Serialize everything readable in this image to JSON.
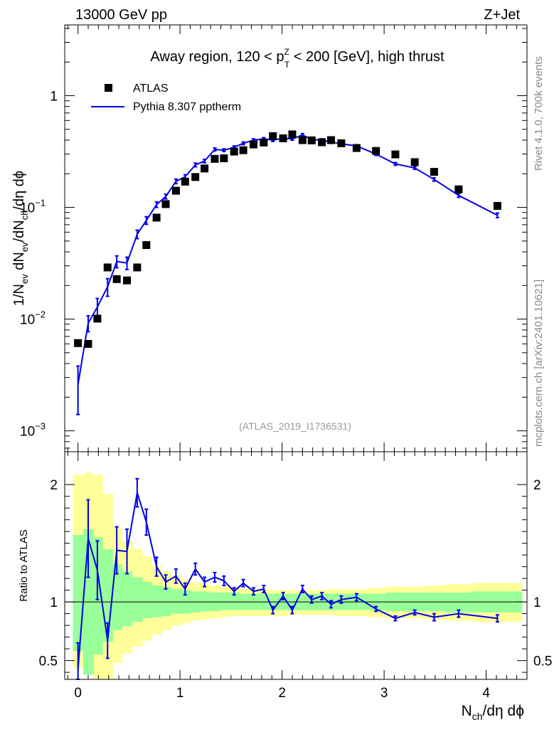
{
  "header": {
    "left": "13000 GeV pp",
    "right": "Z+Jet"
  },
  "side_labels": {
    "top": "Rivet 4.1.0,  700k events",
    "bottom": "mcplots.cern.ch [arXiv:2401.10621]"
  },
  "colors": {
    "mc": "#0000e6",
    "data": "#000000",
    "band_yellow": "#ffff99",
    "band_green": "#99ff99"
  },
  "chart_data": [
    {
      "type": "scatter",
      "role": "main",
      "title_parts": {
        "pre": "Away region, 120 < p",
        "sup": "Z",
        "sub": "T",
        "post": " < 200 [GeV], high thrust"
      },
      "ylabel_parts": [
        "1/N",
        "ev",
        " dN",
        "ev",
        "/dN",
        "ch",
        "/dη dϕ"
      ],
      "yscale": "log",
      "ylim": [
        0.00065,
        4.3
      ],
      "xlim": [
        -0.13,
        4.4
      ],
      "yticks": [
        {
          "v": 1,
          "base": "1",
          "exp": ""
        },
        {
          "v": 0.1,
          "base": "10",
          "exp": "−1"
        },
        {
          "v": 0.01,
          "base": "10",
          "exp": "−2"
        },
        {
          "v": 0.001,
          "base": "10",
          "exp": "−3"
        }
      ],
      "reference": "(ATLAS_2019_I1736531)",
      "legend": [
        {
          "name": "ATLAS",
          "marker": "square"
        },
        {
          "name": "Pythia 8.307 pptherm",
          "marker": "line"
        }
      ],
      "series": [
        {
          "name": "ATLAS",
          "x": [
            0.0,
            0.1,
            0.19,
            0.29,
            0.38,
            0.48,
            0.58,
            0.67,
            0.77,
            0.86,
            0.96,
            1.05,
            1.15,
            1.24,
            1.34,
            1.43,
            1.53,
            1.62,
            1.72,
            1.82,
            1.91,
            2.01,
            2.1,
            2.2,
            2.29,
            2.39,
            2.48,
            2.58,
            2.73,
            2.92,
            3.11,
            3.3,
            3.49,
            3.73,
            4.11
          ],
          "y": [
            0.0061,
            0.006,
            0.0101,
            0.029,
            0.0228,
            0.0222,
            0.029,
            0.046,
            0.081,
            0.107,
            0.141,
            0.17,
            0.187,
            0.223,
            0.272,
            0.275,
            0.316,
            0.325,
            0.366,
            0.381,
            0.434,
            0.415,
            0.45,
            0.4,
            0.398,
            0.383,
            0.4,
            0.375,
            0.34,
            0.32,
            0.298,
            0.254,
            0.208,
            0.145,
            0.103
          ]
        },
        {
          "name": "Pythia 8.307 pptherm",
          "x": [
            0.0,
            0.1,
            0.19,
            0.29,
            0.38,
            0.48,
            0.58,
            0.67,
            0.77,
            0.86,
            0.96,
            1.05,
            1.15,
            1.24,
            1.34,
            1.43,
            1.53,
            1.62,
            1.72,
            1.82,
            1.91,
            2.01,
            2.1,
            2.2,
            2.29,
            2.39,
            2.48,
            2.58,
            2.73,
            2.92,
            3.11,
            3.3,
            3.49,
            3.73,
            4.11
          ],
          "y": [
            0.0026,
            0.0092,
            0.0128,
            0.0195,
            0.0328,
            0.0318,
            0.0575,
            0.0765,
            0.106,
            0.125,
            0.171,
            0.188,
            0.24,
            0.26,
            0.33,
            0.325,
            0.345,
            0.375,
            0.4,
            0.41,
            0.4,
            0.415,
            0.41,
            0.445,
            0.405,
            0.4,
            0.385,
            0.37,
            0.355,
            0.3,
            0.245,
            0.225,
            0.178,
            0.128,
            0.085
          ],
          "err": [
            0.0012,
            0.0015,
            0.0025,
            0.0035,
            0.004,
            0.004,
            0.005,
            0.006,
            0.006,
            0.006,
            0.008,
            0.008,
            0.009,
            0.009,
            0.01,
            0.009,
            0.01,
            0.01,
            0.011,
            0.011,
            0.011,
            0.011,
            0.011,
            0.012,
            0.011,
            0.011,
            0.01,
            0.01,
            0.009,
            0.008,
            0.007,
            0.006,
            0.006,
            0.005,
            0.004
          ]
        }
      ]
    },
    {
      "type": "line",
      "role": "ratio",
      "ylabel": "Ratio to ATLAS",
      "xlabel_parts": [
        "N",
        "ch",
        "/dη dϕ"
      ],
      "ylim": [
        0.34,
        2.28
      ],
      "xlim": [
        -0.13,
        4.4
      ],
      "xticks": [
        {
          "v": 0,
          "label": "0"
        },
        {
          "v": 1,
          "label": "1"
        },
        {
          "v": 2,
          "label": "2"
        },
        {
          "v": 3,
          "label": "3"
        },
        {
          "v": 4,
          "label": "4"
        }
      ],
      "yticks": [
        {
          "v": 0.5,
          "label": "0.5"
        },
        {
          "v": 1,
          "label": "1"
        },
        {
          "v": 2,
          "label": "2"
        }
      ],
      "bands": {
        "edges": [
          -0.05,
          0.05,
          0.15,
          0.24,
          0.34,
          0.43,
          0.53,
          0.63,
          0.72,
          0.82,
          0.91,
          1.01,
          1.1,
          1.2,
          1.29,
          1.39,
          1.48,
          1.58,
          1.67,
          1.77,
          1.87,
          1.96,
          2.06,
          2.15,
          2.25,
          2.34,
          2.44,
          2.53,
          2.63,
          2.83,
          3.02,
          3.21,
          3.4,
          3.59,
          3.87,
          4.35
        ],
        "yellow_lo": [
          0.44,
          0.42,
          0.34,
          0.34,
          0.48,
          0.56,
          0.62,
          0.67,
          0.72,
          0.76,
          0.8,
          0.82,
          0.84,
          0.85,
          0.86,
          0.87,
          0.88,
          0.88,
          0.88,
          0.88,
          0.88,
          0.88,
          0.89,
          0.89,
          0.89,
          0.89,
          0.89,
          0.88,
          0.88,
          0.87,
          0.86,
          0.86,
          0.85,
          0.84,
          0.83
        ],
        "yellow_hi": [
          2.08,
          2.1,
          2.08,
          1.92,
          1.64,
          1.52,
          1.45,
          1.39,
          1.31,
          1.26,
          1.22,
          1.19,
          1.17,
          1.15,
          1.14,
          1.13,
          1.12,
          1.11,
          1.11,
          1.11,
          1.1,
          1.1,
          1.1,
          1.1,
          1.1,
          1.1,
          1.11,
          1.11,
          1.11,
          1.12,
          1.13,
          1.13,
          1.14,
          1.15,
          1.16
        ],
        "green_lo": [
          0.58,
          0.38,
          0.55,
          0.66,
          0.76,
          0.79,
          0.83,
          0.86,
          0.87,
          0.88,
          0.9,
          0.9,
          0.91,
          0.92,
          0.92,
          0.93,
          0.93,
          0.93,
          0.93,
          0.93,
          0.93,
          0.93,
          0.93,
          0.93,
          0.93,
          0.93,
          0.93,
          0.93,
          0.93,
          0.93,
          0.92,
          0.92,
          0.92,
          0.91,
          0.91
        ],
        "green_hi": [
          1.57,
          1.62,
          1.55,
          1.45,
          1.32,
          1.26,
          1.21,
          1.17,
          1.14,
          1.13,
          1.11,
          1.1,
          1.09,
          1.09,
          1.08,
          1.08,
          1.08,
          1.07,
          1.07,
          1.07,
          1.07,
          1.07,
          1.07,
          1.07,
          1.07,
          1.07,
          1.07,
          1.07,
          1.07,
          1.07,
          1.08,
          1.08,
          1.08,
          1.08,
          1.09
        ]
      },
      "series": [
        {
          "name": "Pythia 8.307 pptherm",
          "x": [
            0.0,
            0.1,
            0.19,
            0.29,
            0.38,
            0.48,
            0.58,
            0.67,
            0.77,
            0.86,
            0.96,
            1.05,
            1.15,
            1.24,
            1.34,
            1.43,
            1.53,
            1.62,
            1.72,
            1.82,
            1.91,
            2.01,
            2.1,
            2.2,
            2.29,
            2.39,
            2.48,
            2.58,
            2.73,
            2.92,
            3.11,
            3.3,
            3.49,
            3.73,
            4.11
          ],
          "y": [
            0.43,
            1.54,
            1.27,
            0.67,
            1.44,
            1.43,
            1.93,
            1.68,
            1.3,
            1.17,
            1.22,
            1.11,
            1.28,
            1.17,
            1.21,
            1.18,
            1.09,
            1.16,
            1.09,
            1.11,
            0.93,
            1.05,
            0.93,
            1.11,
            1.02,
            1.05,
            0.98,
            1.02,
            1.04,
            0.94,
            0.86,
            0.91,
            0.87,
            0.9,
            0.86
          ],
          "err": [
            0.22,
            0.33,
            0.25,
            0.15,
            0.2,
            0.19,
            0.12,
            0.11,
            0.08,
            0.06,
            0.06,
            0.05,
            0.05,
            0.04,
            0.04,
            0.04,
            0.03,
            0.03,
            0.03,
            0.03,
            0.03,
            0.03,
            0.03,
            0.03,
            0.03,
            0.03,
            0.03,
            0.03,
            0.03,
            0.02,
            0.02,
            0.02,
            0.03,
            0.03,
            0.03
          ]
        }
      ]
    }
  ]
}
